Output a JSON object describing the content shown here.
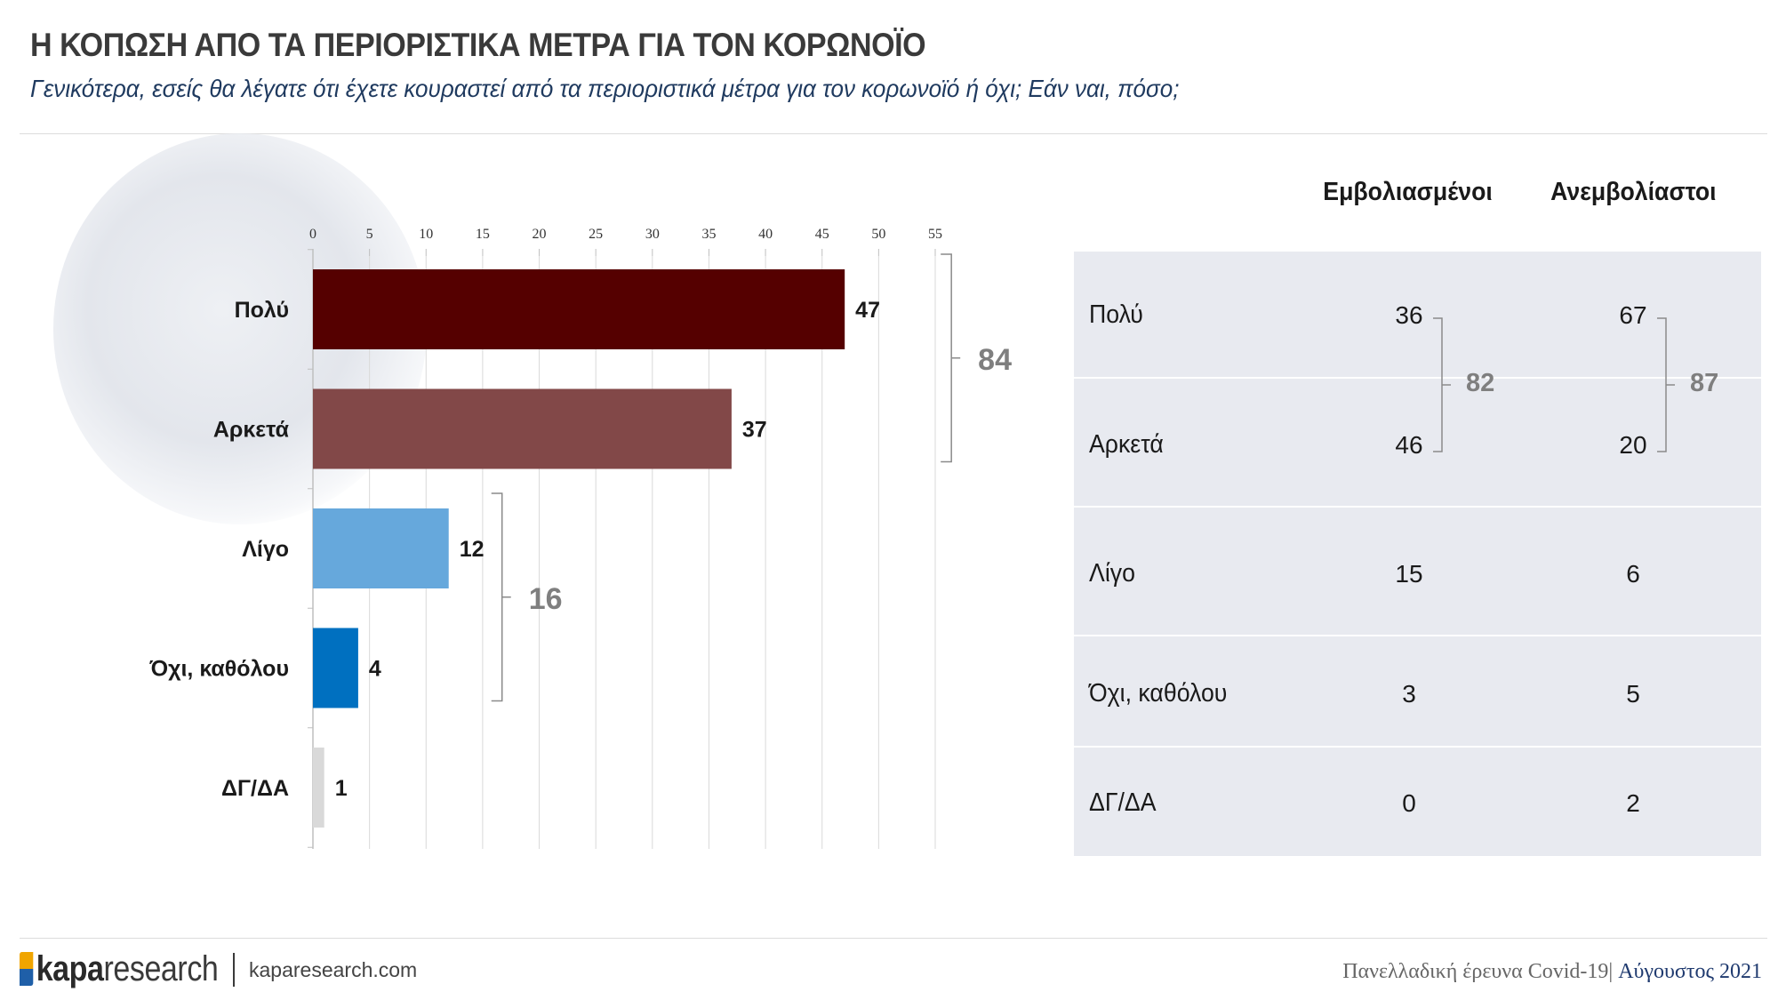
{
  "header": {
    "title": "Η ΚΟΠΩΣΗ ΑΠΟ ΤΑ ΠΕΡΙΟΡΙΣΤΙΚΑ ΜΕΤΡΑ ΓΙΑ ΤΟΝ ΚΟΡΩΝΟΪΟ",
    "subtitle": "Γενικότερα, εσείς θα λέγατε ότι έχετε κουραστεί από τα περιοριστικά μέτρα για τον κορωνοϊό ή όχι; Εάν ναι, πόσο;"
  },
  "chart_data": {
    "type": "bar",
    "orientation": "horizontal",
    "categories": [
      "Πολύ",
      "Αρκετά",
      "Λίγο",
      "Όχι, καθόλου",
      "ΔΓ/ΔΑ"
    ],
    "values": [
      47,
      37,
      12,
      4,
      1
    ],
    "value_labels": [
      "47",
      "37",
      "12",
      "4",
      "1"
    ],
    "colors": [
      "#550000",
      "#824848",
      "#66a8dc",
      "#0070c0",
      "#d9d9d9"
    ],
    "xlim": [
      0,
      55
    ],
    "xticks": [
      "0",
      "5",
      "10",
      "15",
      "20",
      "25",
      "30",
      "35",
      "40",
      "45",
      "50",
      "55"
    ],
    "grid": true,
    "axis_position": "top",
    "brackets": [
      {
        "from": 0,
        "to": 1,
        "label": "84"
      },
      {
        "from": 2,
        "to": 3,
        "label": "16"
      }
    ]
  },
  "table": {
    "columns": [
      "Εμβολιασμένοι",
      "Ανεμβολίαστοι"
    ],
    "rows": [
      {
        "label": "Πολύ",
        "values": [
          "36",
          "67"
        ]
      },
      {
        "label": "Αρκετά",
        "values": [
          "46",
          "20"
        ]
      },
      {
        "label": "Λίγο",
        "values": [
          "15",
          "6"
        ]
      },
      {
        "label": "Όχι, καθόλου",
        "values": [
          "3",
          "5"
        ]
      },
      {
        "label": "ΔΓ/ΔΑ",
        "values": [
          "0",
          "2"
        ]
      }
    ],
    "brackets": [
      "82",
      "87"
    ]
  },
  "footer": {
    "logo_bold": "kapa",
    "logo_light": "research",
    "url": "kaparesearch.com",
    "survey": "Πανελλαδική έρευνα Covid-19|",
    "date": "Αύγουστος 2021"
  }
}
